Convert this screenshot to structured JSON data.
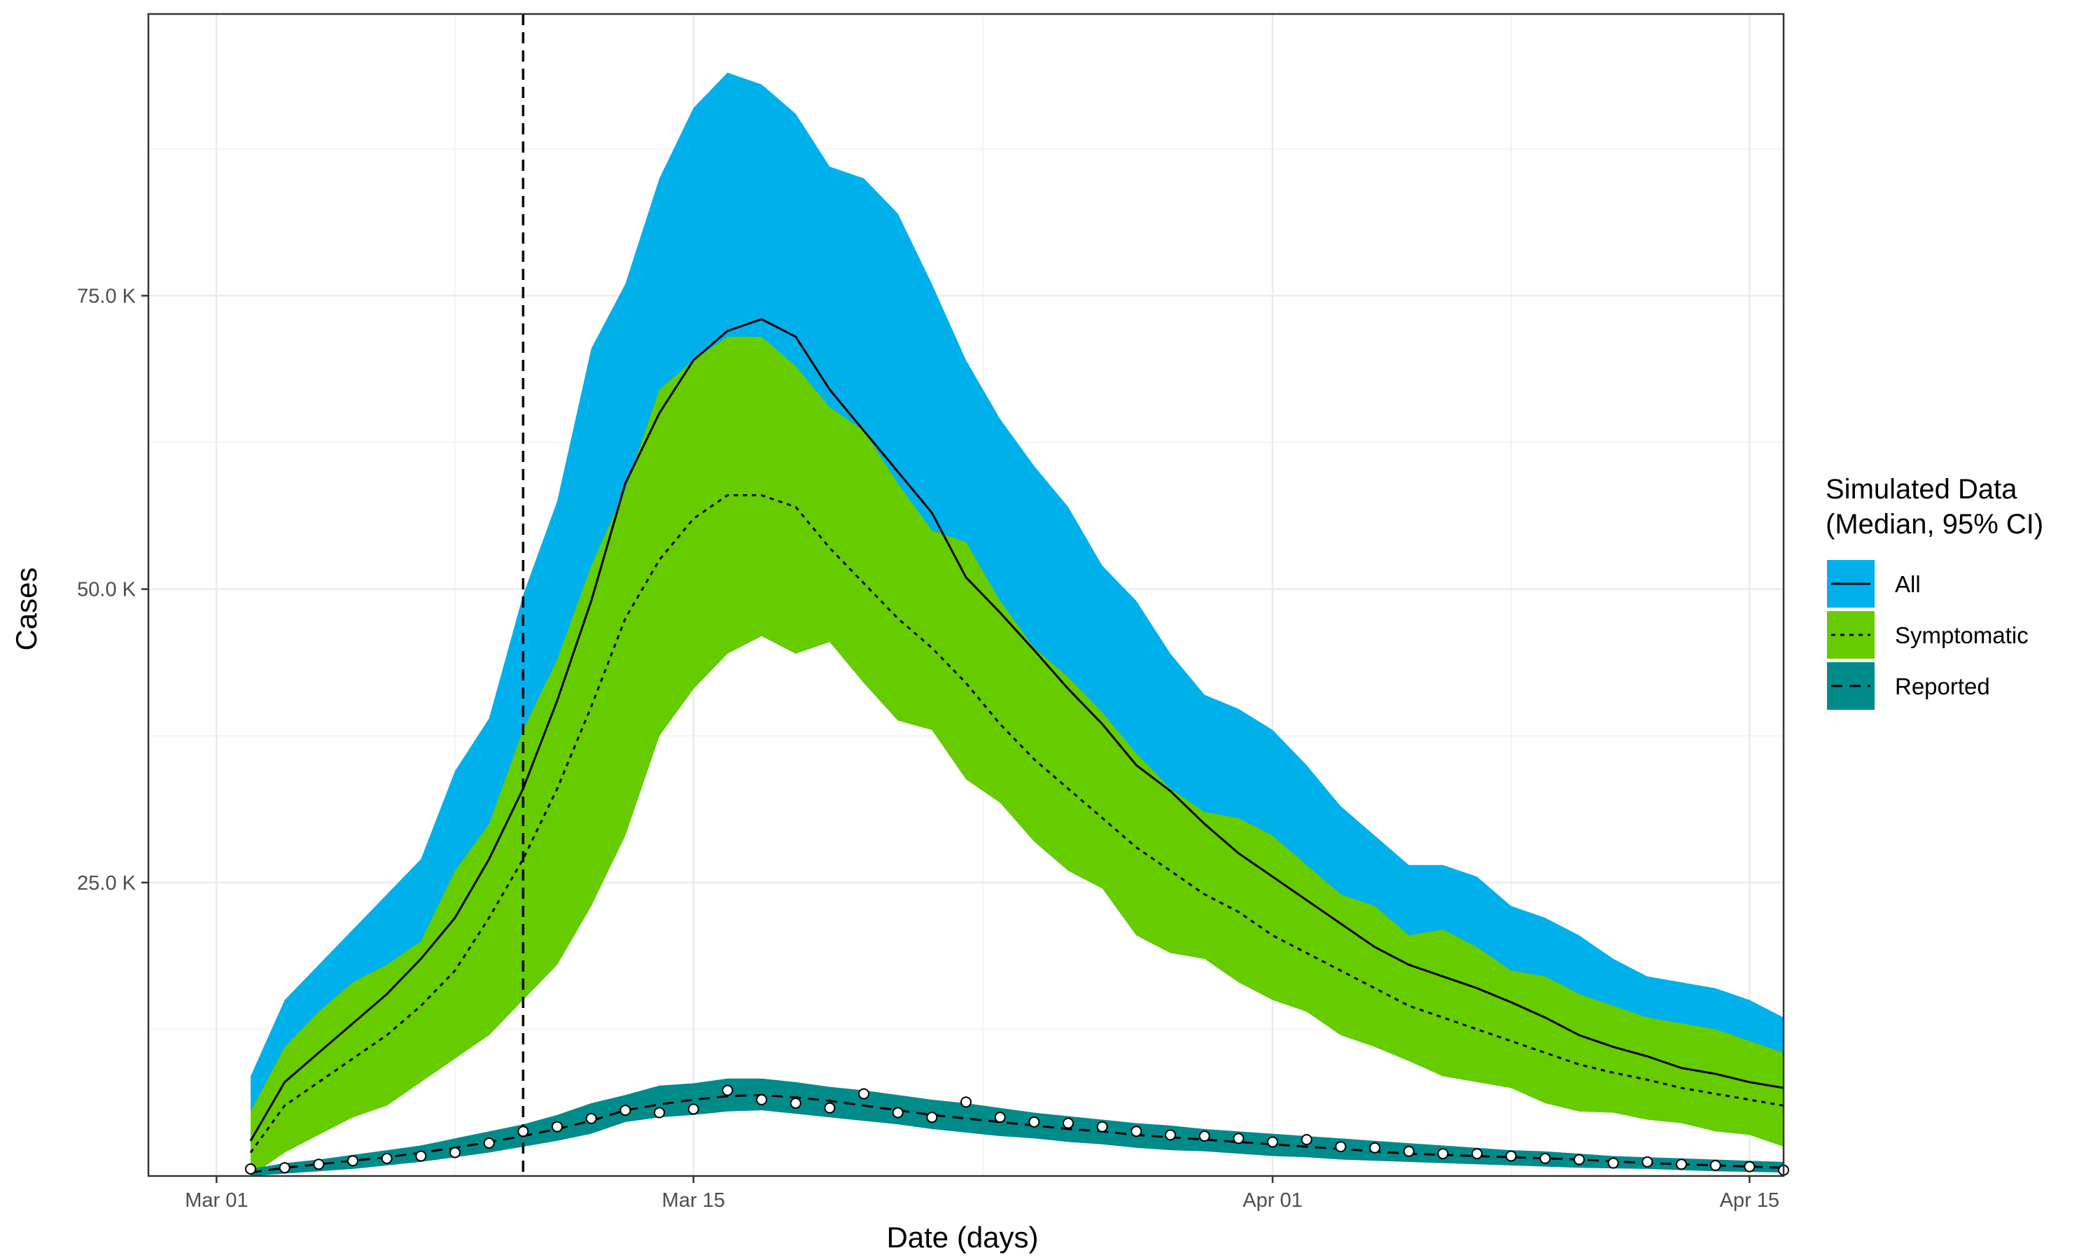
{
  "chart_data": {
    "type": "area",
    "xlabel": "Date (days)",
    "ylabel": "Cases",
    "x_tick_labels": [
      "Mar 01",
      "Mar 15",
      "Apr 01",
      "Apr 15"
    ],
    "x_tick_dates": [
      "2020-03-01",
      "2020-03-15",
      "2020-04-01",
      "2020-04-15"
    ],
    "y_tick_labels": [
      "25.0 K",
      "50.0 K",
      "75.0 K"
    ],
    "y_tick_values": [
      25000,
      50000,
      75000
    ],
    "xlim": [
      "2020-02-28",
      "2020-04-16"
    ],
    "ylim": [
      0,
      99000
    ],
    "grid": true,
    "legend": {
      "title_line1": "Simulated Data",
      "title_line2": "(Median, 95% CI)",
      "position": "right",
      "items": [
        {
          "label": "All",
          "fill": "#00b0eb",
          "line": "solid"
        },
        {
          "label": "Symptomatic",
          "fill": "#66cc00",
          "line": "dotted"
        },
        {
          "label": "Reported",
          "fill": "#008b8b",
          "line": "dashed"
        }
      ]
    },
    "vline": {
      "date": "2020-03-10",
      "style": "dashed"
    },
    "dates": [
      "2020-03-02",
      "2020-03-03",
      "2020-03-04",
      "2020-03-05",
      "2020-03-06",
      "2020-03-07",
      "2020-03-08",
      "2020-03-09",
      "2020-03-10",
      "2020-03-11",
      "2020-03-12",
      "2020-03-13",
      "2020-03-14",
      "2020-03-15",
      "2020-03-16",
      "2020-03-17",
      "2020-03-18",
      "2020-03-19",
      "2020-03-20",
      "2020-03-21",
      "2020-03-22",
      "2020-03-23",
      "2020-03-24",
      "2020-03-25",
      "2020-03-26",
      "2020-03-27",
      "2020-03-28",
      "2020-03-29",
      "2020-03-30",
      "2020-03-31",
      "2020-04-01",
      "2020-04-02",
      "2020-04-03",
      "2020-04-04",
      "2020-04-05",
      "2020-04-06",
      "2020-04-07",
      "2020-04-08",
      "2020-04-09",
      "2020-04-10",
      "2020-04-11",
      "2020-04-12",
      "2020-04-13",
      "2020-04-14",
      "2020-04-15",
      "2020-04-16"
    ],
    "series": [
      {
        "name": "All",
        "fill": "#00b0eb",
        "median": [
          3000,
          8000,
          10500,
          13000,
          15500,
          18500,
          22000,
          27000,
          33000,
          40500,
          49000,
          59000,
          65000,
          69500,
          72000,
          73000,
          71500,
          67000,
          63500,
          60000,
          56500,
          51000,
          48000,
          44800,
          41500,
          38500,
          35000,
          32800,
          30000,
          27500,
          25500,
          23500,
          21500,
          19500,
          18000,
          17000,
          16000,
          14800,
          13500,
          12000,
          11000,
          10200,
          9200,
          8700,
          8000,
          7500
        ],
        "lower": [
          0,
          2000,
          3500,
          5000,
          6000,
          8000,
          10000,
          12000,
          15000,
          18000,
          23000,
          29000,
          37500,
          41500,
          44500,
          46000,
          44500,
          45500,
          42000,
          38800,
          38000,
          33800,
          31800,
          28500,
          26000,
          24500,
          20500,
          19000,
          18500,
          16500,
          15000,
          14000,
          12000,
          11000,
          9800,
          8500,
          8000,
          7500,
          6200,
          5500,
          5400,
          4800,
          4500,
          3800,
          3500,
          2500
        ],
        "upper": [
          8500,
          15000,
          18000,
          21000,
          24000,
          27000,
          34500,
          39000,
          49500,
          57500,
          70500,
          76000,
          85000,
          91000,
          94000,
          93000,
          90500,
          86000,
          85000,
          82000,
          76000,
          69500,
          64500,
          60500,
          57000,
          52000,
          49000,
          44500,
          41000,
          39800,
          38000,
          35000,
          31500,
          29000,
          26500,
          26500,
          25500,
          23000,
          22000,
          20500,
          18500,
          17000,
          16500,
          16000,
          15000,
          13500
        ]
      },
      {
        "name": "Symptomatic",
        "fill": "#66cc00",
        "median": [
          2000,
          6000,
          8000,
          10000,
          12000,
          14500,
          17500,
          22000,
          27000,
          33000,
          40000,
          47500,
          52500,
          56000,
          58000,
          58000,
          57000,
          53500,
          50500,
          47500,
          45000,
          42000,
          38500,
          35500,
          33000,
          30500,
          28000,
          26000,
          24000,
          22500,
          20500,
          19000,
          17500,
          16000,
          14500,
          13500,
          12500,
          11500,
          10500,
          9500,
          8800,
          8200,
          7500,
          7000,
          6500,
          6000
        ],
        "lower": [
          0,
          2000,
          3500,
          5000,
          6000,
          8000,
          10000,
          12000,
          15000,
          18000,
          23000,
          29000,
          37500,
          41500,
          44500,
          46000,
          44500,
          45500,
          42000,
          38800,
          38000,
          33800,
          31800,
          28500,
          26000,
          24500,
          20500,
          19000,
          18500,
          16500,
          15000,
          14000,
          12000,
          11000,
          9800,
          8500,
          8000,
          7500,
          6200,
          5500,
          5400,
          4800,
          4500,
          3800,
          3500,
          2500
        ],
        "upper": [
          5500,
          11000,
          14000,
          16500,
          18000,
          20000,
          26000,
          30000,
          38000,
          44000,
          52000,
          58500,
          67000,
          69500,
          71500,
          71500,
          69000,
          65500,
          63500,
          59000,
          55000,
          54000,
          49000,
          45000,
          42500,
          39500,
          36000,
          33000,
          31000,
          30500,
          29000,
          26500,
          24000,
          23000,
          20500,
          21000,
          19500,
          17500,
          17000,
          15500,
          14500,
          13500,
          13000,
          12500,
          11500,
          10500
        ]
      },
      {
        "name": "Reported",
        "fill": "#008b8b",
        "median": [
          300,
          700,
          1000,
          1300,
          1600,
          2000,
          2400,
          2900,
          3400,
          4000,
          4700,
          5600,
          6100,
          6500,
          6800,
          6900,
          6700,
          6400,
          6000,
          5600,
          5200,
          4900,
          4600,
          4300,
          4000,
          3800,
          3500,
          3300,
          3100,
          2900,
          2700,
          2500,
          2300,
          2100,
          1900,
          1800,
          1700,
          1600,
          1500,
          1400,
          1250,
          1100,
          1000,
          900,
          800,
          700
        ],
        "lower": [
          0,
          200,
          400,
          600,
          900,
          1200,
          1600,
          2000,
          2500,
          3000,
          3600,
          4600,
          5000,
          5200,
          5500,
          5600,
          5300,
          5000,
          4700,
          4400,
          4000,
          3700,
          3400,
          3200,
          2900,
          2700,
          2400,
          2200,
          2100,
          1900,
          1700,
          1600,
          1400,
          1300,
          1200,
          1100,
          1000,
          900,
          800,
          700,
          650,
          600,
          500,
          400,
          350,
          300
        ],
        "upper": [
          600,
          1100,
          1400,
          1800,
          2200,
          2600,
          3200,
          3800,
          4400,
          5200,
          6200,
          6900,
          7700,
          7900,
          8300,
          8300,
          8000,
          7600,
          7300,
          6900,
          6500,
          6200,
          5800,
          5400,
          5100,
          4800,
          4500,
          4300,
          4000,
          3800,
          3600,
          3400,
          3200,
          3000,
          2800,
          2600,
          2400,
          2200,
          2100,
          1900,
          1700,
          1600,
          1500,
          1400,
          1300,
          1200
        ]
      }
    ],
    "observed": {
      "name": "Observed reported cases",
      "values": [
        600,
        700,
        1000,
        1300,
        1500,
        1700,
        2000,
        2800,
        3800,
        4200,
        4900,
        5600,
        5400,
        5700,
        7300,
        6500,
        6200,
        5800,
        7000,
        5400,
        5000,
        6300,
        5000,
        4600,
        4500,
        4200,
        3800,
        3500,
        3400,
        3200,
        2900,
        3100,
        2500,
        2400,
        2100,
        1900,
        1900,
        1700,
        1500,
        1400,
        1100,
        1200,
        1000,
        900,
        800,
        500
      ]
    }
  }
}
